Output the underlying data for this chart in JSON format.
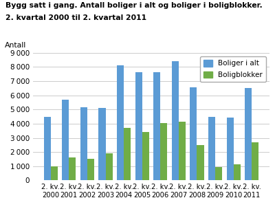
{
  "title_line1": "Bygg satt i gang. Antall boliger i alt og boliger i boligblokker.",
  "title_line2": "2. kvartal 2000 til 2. kvartal 2011",
  "ylabel": "Antall",
  "categories": [
    "2. kv.\n2000",
    "2. kv.\n2001",
    "2. kv.\n2002",
    "2. kv.\n2003",
    "2. kv.\n2004",
    "2. kv.\n2005",
    "2. kv.\n2006",
    "2. kv.\n2007",
    "2. kv.\n2008",
    "2. kv.\n2009",
    "2. kv.\n2010",
    "2. kv.\n2011"
  ],
  "boliger_i_alt": [
    4500,
    5700,
    5150,
    5100,
    8100,
    7650,
    7650,
    8400,
    6550,
    4500,
    4450,
    6500
  ],
  "boligblokker": [
    1000,
    1600,
    1500,
    1900,
    3700,
    3400,
    4050,
    4150,
    2500,
    950,
    1150,
    2700
  ],
  "color_blue": "#5b9bd5",
  "color_green": "#70ad47",
  "ylim": [
    0,
    9000
  ],
  "yticks": [
    0,
    1000,
    2000,
    3000,
    4000,
    5000,
    6000,
    7000,
    8000,
    9000
  ],
  "legend_labels": [
    "Boliger i alt",
    "Boligblokker"
  ],
  "background_color": "#ffffff",
  "grid_color": "#cccccc"
}
